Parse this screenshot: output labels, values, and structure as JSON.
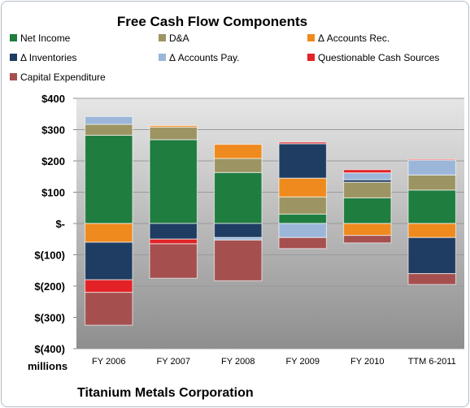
{
  "chart_data": {
    "type": "bar",
    "stacked": true,
    "title": "Free Cash Flow Components",
    "ylabel": "",
    "xlabel": "",
    "ylim": [
      -400,
      400
    ],
    "yticks": [
      "$(400)",
      "$(300)",
      "$(200)",
      "$(100)",
      "$-",
      "$100",
      "$200",
      "$300",
      "$400"
    ],
    "unit_label": "millions",
    "footer": "Titanium Metals Corporation",
    "legend_position": "top",
    "categories": [
      "FY 2006",
      "FY 2007",
      "FY 2008",
      "FY 2009",
      "FY 2010",
      "TTM 6-2011"
    ],
    "series": [
      {
        "name": "Net Income",
        "color": "#1e7d3f",
        "values": [
          282,
          268,
          163,
          30,
          82,
          107
        ]
      },
      {
        "name": "D&A",
        "color": "#9c9462",
        "values": [
          35,
          40,
          45,
          55,
          50,
          48
        ]
      },
      {
        "name": "Δ Accounts Rec.",
        "color": "#ef8a1e",
        "values": [
          -60,
          5,
          45,
          60,
          -38,
          -45
        ]
      },
      {
        "name": "Δ Inventories",
        "color": "#1f3d62",
        "values": [
          -120,
          -50,
          -45,
          110,
          8,
          -115
        ]
      },
      {
        "name": "Δ Accounts Pay.",
        "color": "#9bb6d8",
        "values": [
          25,
          0,
          -8,
          -45,
          22,
          48
        ]
      },
      {
        "name": "Questionable Cash Sources",
        "color": "#e22226",
        "values": [
          -40,
          -15,
          0,
          5,
          10,
          3
        ]
      },
      {
        "name": "Capital Expenditure",
        "color": "#a5504f",
        "values": [
          -105,
          -110,
          -130,
          -35,
          -24,
          -35
        ]
      }
    ]
  }
}
